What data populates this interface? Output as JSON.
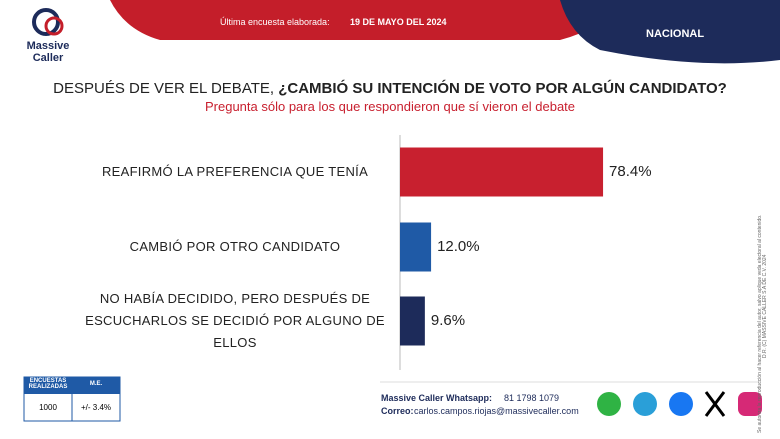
{
  "header": {
    "brand": "Massive Caller",
    "survey_label": "Última encuesta elaborada:",
    "survey_date": "19 DE MAYO DEL 2024",
    "scope": "NACIONAL"
  },
  "chart_data": {
    "type": "bar",
    "orientation": "horizontal",
    "title": "DESPUÉS DE VER EL DEBATE,",
    "title_emphasis": "¿CAMBIÓ SU INTENCIÓN DE VOTO POR ALGÚN CANDIDATO?",
    "subtitle": "Pregunta sólo para los que respondieron que sí vieron el debate",
    "categories": [
      "REAFIRMÓ LA PREFERENCIA QUE TENÍA",
      "CAMBIÓ POR OTRO CANDIDATO",
      "NO HABÍA DECIDIDO, PERO DESPUÉS DE ESCUCHARLOS SE DECIDIÓ POR ALGUNO DE ELLOS"
    ],
    "values": [
      78.4,
      12.0,
      9.6
    ],
    "value_labels": [
      "78.4%",
      "12.0%",
      "9.6%"
    ],
    "colors": [
      "#c8202f",
      "#1f5aa6",
      "#1d2b5a"
    ]
  },
  "footer": {
    "table": {
      "headers": [
        "ENCUESTAS REALIZADAS",
        "M.E."
      ],
      "row": [
        "1000",
        "+/- 3.4%"
      ]
    },
    "whatsapp_label": "Massive Caller Whatsapp:",
    "whatsapp": "81 1798 1079",
    "email_label": "Correo:",
    "email": "carlos.campos.riojas@massivecaller.com"
  },
  "side_note": {
    "copyright": "D.R. (C) MASSIVE CALLER S.A DE C.V. 2024",
    "notice": "Se autoriza la reproducción al hacer referencia del autor, salvo aplique veda electoral al contenido."
  }
}
